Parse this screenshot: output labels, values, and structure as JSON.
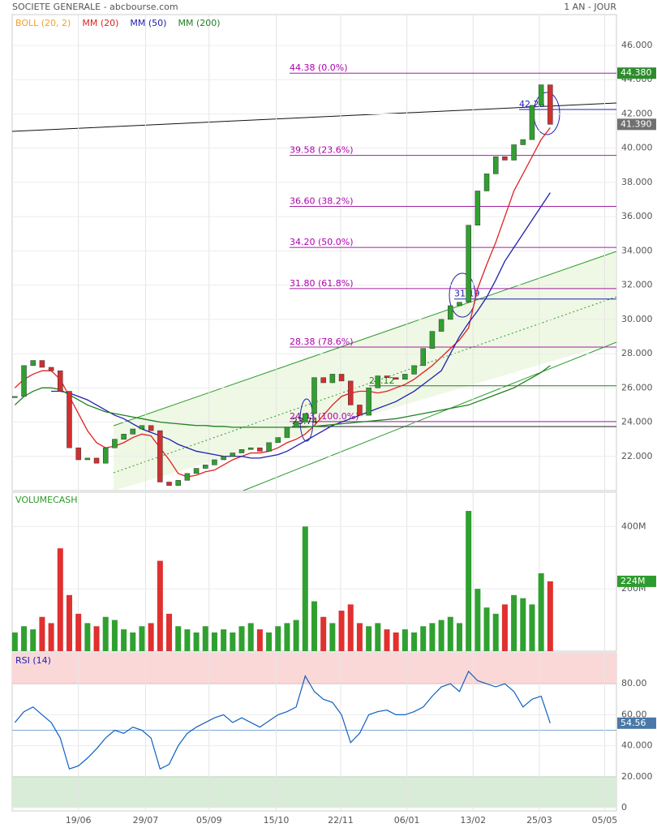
{
  "chart_data": {
    "type": "candlestick-panels",
    "title": "SOCIETE GENERALE - abcbourse.com",
    "period": "1 AN - JOUR",
    "legend": [
      {
        "name": "BOLL (20, 2)",
        "color": "#f0a030"
      },
      {
        "name": "MM (20)",
        "color": "#e02020"
      },
      {
        "name": "MM (50)",
        "color": "#2020b0"
      },
      {
        "name": "MM (200)",
        "color": "#208020"
      }
    ],
    "xlim": [
      -0.3,
      66.3
    ],
    "xticks": [
      {
        "value": 7.0,
        "label": "19/06"
      },
      {
        "value": 14.4,
        "label": "29/07"
      },
      {
        "value": 21.4,
        "label": "05/09"
      },
      {
        "value": 28.8,
        "label": "15/10"
      },
      {
        "value": 35.9,
        "label": "22/11"
      },
      {
        "value": 43.2,
        "label": "06/01"
      },
      {
        "value": 50.5,
        "label": "13/02"
      },
      {
        "value": 57.8,
        "label": "25/03"
      },
      {
        "value": 65.0,
        "label": "05/05"
      }
    ],
    "price": {
      "ylim": [
        20.0,
        47.8
      ],
      "yticks": [
        {
          "value": 22,
          "label": "22.000"
        },
        {
          "value": 24,
          "label": "24.000"
        },
        {
          "value": 26,
          "label": "26.000"
        },
        {
          "value": 28,
          "label": "28.000"
        },
        {
          "value": 30,
          "label": "30.000"
        },
        {
          "value": 32,
          "label": "32.000"
        },
        {
          "value": 34,
          "label": "34.000"
        },
        {
          "value": 36,
          "label": "36.000"
        },
        {
          "value": 38,
          "label": "38.000"
        },
        {
          "value": 40,
          "label": "40.000"
        },
        {
          "value": 42,
          "label": "42.000"
        },
        {
          "value": 44,
          "label": "44.000"
        },
        {
          "value": 46,
          "label": "46.000"
        }
      ],
      "close": [
        25.5,
        27.3,
        27.6,
        27.2,
        27.0,
        25.8,
        22.5,
        21.8,
        21.9,
        21.6,
        22.5,
        23.0,
        23.3,
        23.6,
        23.8,
        23.5,
        20.5,
        20.3,
        20.6,
        21.0,
        21.3,
        21.5,
        21.8,
        22.0,
        22.2,
        22.4,
        22.5,
        22.3,
        22.8,
        23.1,
        23.7,
        24.0,
        24.5,
        26.6,
        26.3,
        26.8,
        26.4,
        25.0,
        24.4,
        26.0,
        26.7,
        26.6,
        26.5,
        26.8,
        27.3,
        28.3,
        29.3,
        30.0,
        30.8,
        31.0,
        35.5,
        37.5,
        38.5,
        39.5,
        39.3,
        40.2,
        40.5,
        42.5,
        43.7,
        41.39
      ],
      "close_color": "#333333",
      "series": [
        {
          "name": "MM (20)",
          "color": "#e02020",
          "values": [
            26.0,
            26.5,
            26.8,
            27.0,
            27.0,
            26.5,
            25.5,
            24.5,
            23.5,
            22.8,
            22.5,
            22.6,
            22.8,
            23.1,
            23.3,
            23.2,
            22.5,
            21.8,
            21.0,
            20.8,
            20.9,
            21.1,
            21.2,
            21.5,
            21.8,
            22.0,
            22.2,
            22.2,
            22.3,
            22.5,
            22.8,
            23.0,
            23.3,
            23.8,
            24.4,
            25.0,
            25.5,
            25.7,
            25.8,
            25.8,
            25.7,
            25.8,
            26.0,
            26.2,
            26.5,
            26.9,
            27.3,
            27.8,
            28.3,
            28.8,
            29.5,
            31.8,
            33.2,
            34.5,
            36.0,
            37.5,
            38.5,
            39.5,
            40.5,
            41.2
          ]
        },
        {
          "name": "MM (50)",
          "color": "#2020b0",
          "values": [
            null,
            null,
            null,
            null,
            25.8,
            25.8,
            25.7,
            25.5,
            25.3,
            25.0,
            24.7,
            24.4,
            24.2,
            23.9,
            23.6,
            23.4,
            23.2,
            23.0,
            22.7,
            22.5,
            22.3,
            22.2,
            22.1,
            22.0,
            22.0,
            22.0,
            21.9,
            21.9,
            22.0,
            22.1,
            22.3,
            22.6,
            22.9,
            23.2,
            23.5,
            23.8,
            24.0,
            24.2,
            24.4,
            24.6,
            24.8,
            25.0,
            25.2,
            25.5,
            25.8,
            26.2,
            26.6,
            27.0,
            28.0,
            29.0,
            29.8,
            30.5,
            31.3,
            32.3,
            33.4,
            34.2,
            35.0,
            35.8,
            36.6,
            37.4
          ]
        },
        {
          "name": "MM (200)",
          "color": "#208020",
          "values": [
            25.0,
            25.5,
            25.8,
            26.0,
            26.0,
            25.9,
            25.6,
            25.3,
            25.0,
            24.8,
            24.6,
            24.5,
            24.4,
            24.3,
            24.2,
            24.1,
            24.0,
            23.95,
            23.9,
            23.85,
            23.8,
            23.8,
            23.75,
            23.75,
            23.7,
            23.7,
            23.7,
            23.7,
            23.7,
            23.7,
            23.7,
            23.7,
            23.7,
            23.75,
            23.8,
            23.85,
            23.9,
            23.95,
            24.0,
            24.05,
            24.1,
            24.15,
            24.2,
            24.3,
            24.4,
            24.5,
            24.6,
            24.7,
            24.8,
            24.9,
            25.0,
            25.2,
            25.4,
            25.6,
            25.8,
            26.0,
            26.3,
            26.6,
            26.9,
            27.3
          ]
        }
      ],
      "last_high": {
        "value": 44.38,
        "label": "44.380"
      },
      "last_close": {
        "value": 41.39,
        "label": "41.390"
      },
      "fibonacci": [
        {
          "value": 44.38,
          "label": "44.38  (0.0%)"
        },
        {
          "value": 39.58,
          "label": "39.58  (23.6%)"
        },
        {
          "value": 36.6,
          "label": "36.60  (38.2%)"
        },
        {
          "value": 34.2,
          "label": "34.20  (50.0%)"
        },
        {
          "value": 31.8,
          "label": "31.80  (61.8%)"
        },
        {
          "value": 28.38,
          "label": "28.38  (78.6%)"
        },
        {
          "value": 24.03,
          "label": "24.03  (100.0%)"
        }
      ],
      "levels": [
        {
          "value": 42.26,
          "label": "42.26",
          "color": "#2020b0"
        },
        {
          "value": 31.19,
          "label": "31.19",
          "color": "#2020b0"
        },
        {
          "value": 26.12,
          "label": "26.12",
          "color": "#208020"
        },
        {
          "value": 23.74,
          "label": "23.74",
          "color": "#222222"
        }
      ]
    },
    "volume": {
      "label": "VOLUMECASH",
      "ylim": [
        0,
        510
      ],
      "yticks": [
        {
          "value": 200,
          "label": "200M"
        },
        {
          "value": 400,
          "label": "400M"
        }
      ],
      "values": [
        60,
        80,
        70,
        110,
        90,
        330,
        180,
        120,
        90,
        80,
        110,
        100,
        70,
        60,
        80,
        90,
        290,
        120,
        80,
        70,
        60,
        80,
        60,
        70,
        60,
        80,
        90,
        70,
        60,
        80,
        90,
        100,
        400,
        160,
        110,
        90,
        130,
        150,
        90,
        80,
        90,
        70,
        60,
        70,
        60,
        80,
        90,
        100,
        110,
        90,
        450,
        200,
        140,
        120,
        150,
        180,
        170,
        150,
        250,
        224
      ],
      "last": {
        "value": 224,
        "label": "224M"
      }
    },
    "rsi": {
      "label": "RSI (14)",
      "ylim": [
        0,
        100
      ],
      "overbought": 80,
      "oversold": 20,
      "yticks": [
        {
          "value": 0,
          "label": "0"
        },
        {
          "value": 20,
          "label": "20.000"
        },
        {
          "value": 40,
          "label": "40.000"
        },
        {
          "value": 60,
          "label": "60.00"
        },
        {
          "value": 80,
          "label": "80.00"
        }
      ],
      "mid": 50,
      "values": [
        55,
        62,
        65,
        60,
        55,
        45,
        25,
        27,
        32,
        38,
        45,
        50,
        48,
        52,
        50,
        45,
        25,
        28,
        40,
        48,
        52,
        55,
        58,
        60,
        55,
        58,
        55,
        52,
        56,
        60,
        62,
        65,
        85,
        75,
        70,
        68,
        60,
        42,
        48,
        60,
        62,
        63,
        60,
        60,
        62,
        65,
        72,
        78,
        80,
        75,
        88,
        82,
        80,
        78,
        80,
        75,
        65,
        70,
        72,
        54.56
      ],
      "color": "#1060c0",
      "last": {
        "value": 54.56,
        "label": "54.56"
      }
    }
  }
}
